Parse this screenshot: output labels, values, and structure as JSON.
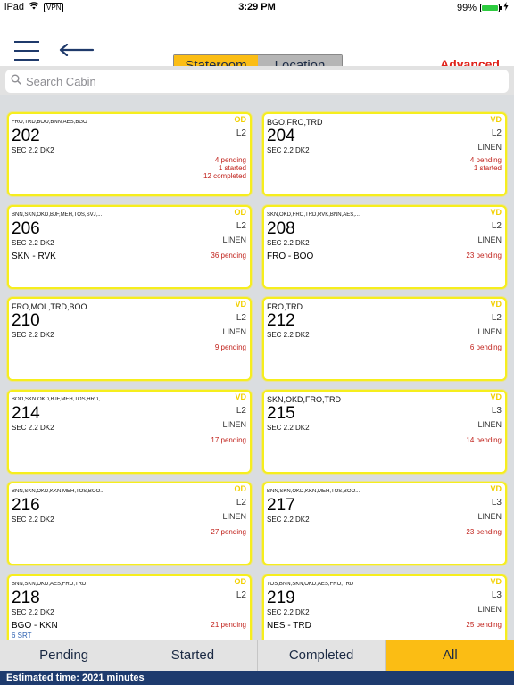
{
  "status_bar": {
    "device": "iPad",
    "vpn": "VPN",
    "time": "3:29 PM",
    "battery": "99%",
    "battery_level": 0.99
  },
  "nav": {
    "segments": [
      "Stateroom",
      "Location"
    ],
    "active_segment": "Stateroom",
    "advanced_label": "Advanced"
  },
  "search": {
    "placeholder": "Search Cabin",
    "value": ""
  },
  "colors": {
    "accent": "#fbbd14",
    "card_border": "#f6ee1d",
    "alert": "#e0231b",
    "footer": "#1e3b6e"
  },
  "cabins": [
    {
      "codes": "FRO,TRD,BOO,BNN,AES,BGO",
      "codes_small": true,
      "od": "OD",
      "number": "202",
      "level": "L2",
      "section": "SEC 2.2 DK2",
      "linen": "",
      "route": "",
      "srt": "",
      "status": [
        "4 pending",
        "1 started",
        "12 completed"
      ]
    },
    {
      "codes": "BGO,FRO,TRD",
      "codes_small": false,
      "od": "VD",
      "number": "204",
      "level": "L2",
      "section": "SEC 2.2 DK2",
      "linen": "LINEN",
      "route": "",
      "srt": "",
      "status": [
        "4 pending",
        "1 started"
      ]
    },
    {
      "codes": "BNN,SKN,OKD,BJF,MEH,TOS,SVJ,...",
      "codes_small": true,
      "od": "OD",
      "number": "206",
      "level": "L2",
      "section": "SEC 2.2 DK2",
      "linen": "LINEN",
      "route": "SKN - RVK",
      "srt": "",
      "status": [
        "36 pending"
      ]
    },
    {
      "codes": "SKN,OKD,FRO,TRD,RVK,BNN,AES,...",
      "codes_small": true,
      "od": "VD",
      "number": "208",
      "level": "L2",
      "section": "SEC 2.2 DK2",
      "linen": "LINEN",
      "route": "FRO - BOO",
      "srt": "",
      "status": [
        "23 pending"
      ]
    },
    {
      "codes": "FRO,MOL,TRD,BOO",
      "codes_small": false,
      "od": "VD",
      "number": "210",
      "level": "L2",
      "section": "SEC 2.2 DK2",
      "linen": "LINEN",
      "route": "",
      "srt": "",
      "status": [
        "9 pending"
      ]
    },
    {
      "codes": "FRO,TRD",
      "codes_small": false,
      "od": "VD",
      "number": "212",
      "level": "L2",
      "section": "SEC 2.2 DK2",
      "linen": "LINEN",
      "route": "",
      "srt": "",
      "status": [
        "6 pending"
      ]
    },
    {
      "codes": "BOO,SKN,OKD,BJF,MEH,TOS,HRD,...",
      "codes_small": true,
      "od": "VD",
      "number": "214",
      "level": "L2",
      "section": "SEC 2.2 DK2",
      "linen": "LINEN",
      "route": "",
      "srt": "",
      "status": [
        "17 pending"
      ]
    },
    {
      "codes": "SKN,OKD,FRO,TRD",
      "codes_small": false,
      "od": "VD",
      "number": "215",
      "level": "L3",
      "section": "SEC 2.2 DK2",
      "linen": "LINEN",
      "route": "",
      "srt": "",
      "status": [
        "14 pending"
      ]
    },
    {
      "codes": "BNN,SKN,OKD,KKN,MEH,TOS,BOO...",
      "codes_small": true,
      "od": "OD",
      "number": "216",
      "level": "L2",
      "section": "SEC 2.2 DK2",
      "linen": "LINEN",
      "route": "",
      "srt": "",
      "status": [
        "27 pending"
      ]
    },
    {
      "codes": "BNN,SKN,OKD,KKN,MEH,TOS,BOO...",
      "codes_small": true,
      "od": "VD",
      "number": "217",
      "level": "L3",
      "section": "SEC 2.2 DK2",
      "linen": "LINEN",
      "route": "",
      "srt": "",
      "status": [
        "23 pending"
      ]
    },
    {
      "codes": "BNN,SKN,OKD,AES,FRO,TRD",
      "codes_small": true,
      "od": "OD",
      "number": "218",
      "level": "L2",
      "section": "SEC 2.2 DK2",
      "linen": "",
      "route": "BGO - KKN",
      "srt": "6 SRT",
      "status": [
        "21 pending"
      ]
    },
    {
      "codes": "TOS,BNN,SKN,OKD,AES,FRO,TRD",
      "codes_small": true,
      "od": "VD",
      "number": "219",
      "level": "L3",
      "section": "SEC 2.2 DK2",
      "linen": "LINEN",
      "route": "NES - TRD",
      "srt": "",
      "status": [
        "25 pending"
      ]
    }
  ],
  "tabs": [
    "Pending",
    "Started",
    "Completed",
    "All"
  ],
  "active_tab": "All",
  "footer": {
    "text": "Estimated time: 2021 minutes"
  }
}
